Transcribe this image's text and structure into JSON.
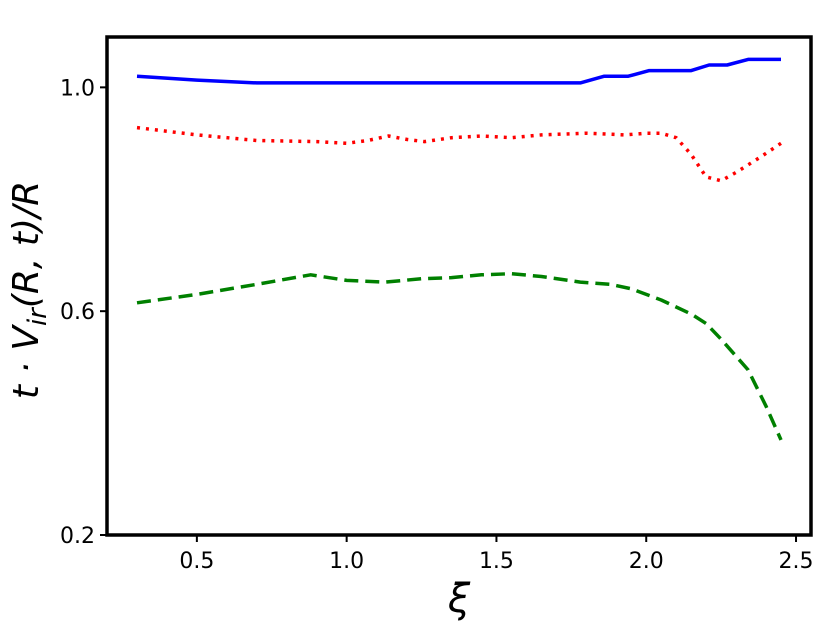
{
  "chart_data": {
    "type": "line",
    "xlabel": "ξ",
    "ylabel_parts": [
      "t · V",
      "ir",
      "(R, t)/R"
    ],
    "xlim": [
      0.2,
      2.55
    ],
    "ylim": [
      0.2,
      1.09
    ],
    "xticks": [
      0.5,
      1.0,
      1.5,
      2.0,
      2.5
    ],
    "xtick_labels": [
      "0.5",
      "1.0",
      "1.5",
      "2.0",
      "2.5"
    ],
    "yticks": [
      0.2,
      0.6,
      1.0
    ],
    "ytick_labels": [
      "0.2",
      "0.6",
      "1.0"
    ],
    "grid": false,
    "legend": "none",
    "series": [
      {
        "color": "#0000ff",
        "style": "solid",
        "points": [
          [
            0.3,
            1.02
          ],
          [
            0.5,
            1.013
          ],
          [
            0.7,
            1.008
          ],
          [
            0.9,
            1.008
          ],
          [
            1.1,
            1.008
          ],
          [
            1.3,
            1.008
          ],
          [
            1.5,
            1.008
          ],
          [
            1.7,
            1.008
          ],
          [
            1.78,
            1.008
          ],
          [
            1.86,
            1.02
          ],
          [
            1.94,
            1.02
          ],
          [
            2.01,
            1.03
          ],
          [
            2.15,
            1.03
          ],
          [
            2.21,
            1.04
          ],
          [
            2.27,
            1.04
          ],
          [
            2.34,
            1.05
          ],
          [
            2.45,
            1.05
          ]
        ]
      },
      {
        "color": "#ff0000",
        "style": "dotted",
        "points": [
          [
            0.3,
            0.928
          ],
          [
            0.5,
            0.915
          ],
          [
            0.7,
            0.905
          ],
          [
            0.9,
            0.903
          ],
          [
            1.0,
            0.9
          ],
          [
            1.07,
            0.905
          ],
          [
            1.14,
            0.913
          ],
          [
            1.2,
            0.907
          ],
          [
            1.26,
            0.903
          ],
          [
            1.35,
            0.91
          ],
          [
            1.45,
            0.913
          ],
          [
            1.55,
            0.91
          ],
          [
            1.65,
            0.915
          ],
          [
            1.8,
            0.918
          ],
          [
            1.93,
            0.915
          ],
          [
            2.0,
            0.918
          ],
          [
            2.05,
            0.918
          ],
          [
            2.1,
            0.91
          ],
          [
            2.15,
            0.88
          ],
          [
            2.2,
            0.84
          ],
          [
            2.25,
            0.833
          ],
          [
            2.3,
            0.848
          ],
          [
            2.38,
            0.875
          ],
          [
            2.45,
            0.9
          ]
        ]
      },
      {
        "color": "#008000",
        "style": "dashed",
        "points": [
          [
            0.3,
            0.615
          ],
          [
            0.5,
            0.63
          ],
          [
            0.7,
            0.648
          ],
          [
            0.88,
            0.665
          ],
          [
            1.0,
            0.655
          ],
          [
            1.13,
            0.652
          ],
          [
            1.25,
            0.658
          ],
          [
            1.35,
            0.66
          ],
          [
            1.45,
            0.665
          ],
          [
            1.55,
            0.667
          ],
          [
            1.65,
            0.662
          ],
          [
            1.78,
            0.652
          ],
          [
            1.88,
            0.648
          ],
          [
            1.95,
            0.64
          ],
          [
            2.05,
            0.62
          ],
          [
            2.15,
            0.595
          ],
          [
            2.2,
            0.578
          ],
          [
            2.25,
            0.55
          ],
          [
            2.34,
            0.495
          ],
          [
            2.4,
            0.43
          ],
          [
            2.45,
            0.37
          ]
        ]
      }
    ]
  }
}
